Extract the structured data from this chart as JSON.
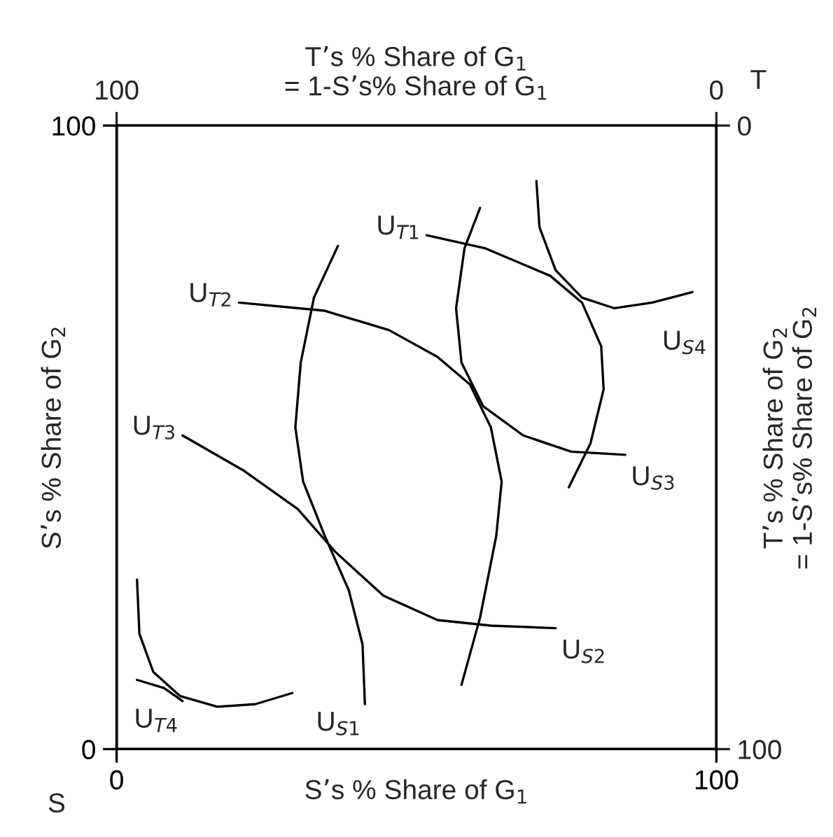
{
  "chart_data": {
    "type": "line",
    "xlabel": "S’s % Share of G$_{1}$",
    "ylabel": "S’s % Share of G$_{2}$",
    "x2label": "T’s % Share of G$_{1}$\n= 1-S’s% Share of G$_{1}$",
    "y2label": "T’s % Share of G$_{2}$\n= 1-S’s% Share of G$_{2}$",
    "xlim": [
      0,
      100
    ],
    "ylim": [
      0,
      100
    ],
    "xticks": [
      0,
      100
    ],
    "yticks": [
      0,
      100
    ],
    "x2lim": [
      100,
      0
    ],
    "x2ticks": [
      100,
      0
    ],
    "y2lim": [
      100,
      0
    ],
    "y2ticks": [
      0,
      100
    ],
    "legend": false,
    "series": [
      {
        "color": "#000000",
        "x": [
          36.9,
          32.9,
          30.7,
          29.8,
          31.1,
          34.7,
          38.7,
          41.0,
          41.4
        ],
        "values": [
          80.7,
          72.4,
          62.0,
          51.6,
          42.9,
          34.2,
          25.5,
          16.8,
          7.2
        ]
      },
      {
        "color": "#000000",
        "x": [
          51.7,
          61.5,
          72.3,
          77.6,
          80.8,
          81.2,
          79.0,
          75.4
        ],
        "values": [
          82.4,
          80.3,
          75.9,
          71.6,
          64.6,
          57.7,
          49.0,
          42.0
        ]
      },
      {
        "color": "#000000",
        "x": [
          60.6,
          58.0,
          56.6,
          57.5,
          61.1,
          67.8,
          75.8,
          84.8
        ],
        "values": [
          86.8,
          80.3,
          70.7,
          62.0,
          55.0,
          50.3,
          47.7,
          47.2
        ]
      },
      {
        "color": "#000000",
        "x": [
          70.0,
          70.5,
          73.2,
          77.6,
          83.0,
          89.3,
          96.0
        ],
        "values": [
          91.1,
          83.7,
          76.8,
          72.4,
          70.7,
          71.6,
          73.3
        ]
      },
      {
        "color": "#000000",
        "x": [
          20.4,
          34.7,
          45.4,
          53.5,
          58.9,
          62.4,
          64.2,
          63.3,
          60.6,
          57.5
        ],
        "values": [
          71.6,
          70.3,
          67.2,
          62.9,
          58.5,
          51.6,
          42.9,
          34.2,
          21.1,
          10.3
        ]
      },
      {
        "color": "#000000",
        "x": [
          11.0,
          21.3,
          30.2,
          36.5,
          44.5,
          53.5,
          62.4,
          73.2
        ],
        "values": [
          50.3,
          44.6,
          38.5,
          31.6,
          24.6,
          20.7,
          19.8,
          19.4
        ]
      },
      {
        "color": "#000000",
        "x": [
          3.4,
          3.8,
          6.1,
          10.6,
          16.8,
          23.1,
          29.3
        ],
        "values": [
          27.2,
          18.5,
          12.4,
          8.5,
          6.8,
          7.2,
          9.0
        ]
      },
      {
        "color": "#000000",
        "x": [
          3.4,
          7.9,
          11.0
        ],
        "values": [
          11.1,
          9.8,
          7.7
        ]
      }
    ],
    "annotations": [
      {
        "text": "U$_{T1}$",
        "x": 51.7,
        "y": 82.4
      },
      {
        "text": "U$_{T2}$",
        "x": 20.4,
        "y": 71.6
      },
      {
        "text": "U$_{T3}$",
        "x": 11.0,
        "y": 50.3
      },
      {
        "text": "U$_{T4}$",
        "x": 11.0,
        "y": 7.7
      },
      {
        "text": "U$_{S1}$",
        "x": 41.4,
        "y": 7.2
      },
      {
        "text": "U$_{S2}$",
        "x": 73.2,
        "y": 19.4
      },
      {
        "text": "U$_{S3}$",
        "x": 84.8,
        "y": 47.2
      },
      {
        "text": "U$_{S4}$",
        "x": 96.0,
        "y": 73.3
      },
      "S",
      "T"
    ]
  }
}
